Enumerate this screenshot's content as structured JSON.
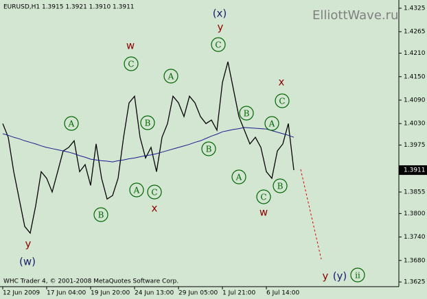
{
  "chart_data": {
    "type": "line",
    "title": "EURUSD,H1  1.3915 1.3921 1.3910 1.3911",
    "watermark": "ElliottWave.ru",
    "footer": "WHC Trader 4, © 2001-2008 MetaQuotes Software Corp.",
    "categories": [
      "12 Jun 2009",
      null,
      null,
      null,
      null,
      null,
      null,
      null,
      "17 Jun 04:00",
      null,
      null,
      null,
      null,
      null,
      null,
      null,
      "19 Jun 20:00",
      null,
      null,
      null,
      null,
      null,
      null,
      null,
      "24 Jun 13:00",
      null,
      null,
      null,
      null,
      null,
      null,
      null,
      "29 Jun 05:00",
      null,
      null,
      null,
      null,
      null,
      null,
      null,
      "1 Jul 21:00",
      null,
      null,
      null,
      null,
      null,
      null,
      null,
      "6 Jul 14:00",
      null,
      null,
      null,
      null,
      null
    ],
    "series": [
      {
        "name": "EURUSD",
        "color": "#000000",
        "values": [
          1.403,
          1.3995,
          1.3907,
          1.3837,
          1.3767,
          1.375,
          1.382,
          1.3907,
          1.389,
          1.3855,
          1.3907,
          1.396,
          1.3969,
          1.3986,
          1.3907,
          1.3925,
          1.3872,
          1.3978,
          1.389,
          1.3837,
          1.3846,
          1.389,
          1.3995,
          1.4083,
          1.41,
          1.3995,
          1.3942,
          1.3969,
          1.3907,
          1.3995,
          1.403,
          1.41,
          1.4083,
          1.4048,
          1.41,
          1.4083,
          1.4048,
          1.403,
          1.4039,
          1.4013,
          1.4135,
          1.4188,
          1.4118,
          1.4048,
          1.4013,
          1.3978,
          1.3995,
          1.3969,
          1.3907,
          1.389,
          1.396,
          1.3978,
          1.403,
          1.3911
        ]
      },
      {
        "name": "MA",
        "color": "#1a1a8c",
        "values": [
          1.4004,
          1.4,
          1.3995,
          1.3991,
          1.3986,
          1.3982,
          1.3978,
          1.3973,
          1.3969,
          1.3966,
          1.3963,
          1.396,
          1.3957,
          1.3953,
          1.3948,
          1.3944,
          1.3939,
          1.3937,
          1.3935,
          1.3934,
          1.3932,
          1.3935,
          1.3937,
          1.394,
          1.3942,
          1.3945,
          1.3948,
          1.395,
          1.3953,
          1.3957,
          1.3961,
          1.3965,
          1.3969,
          1.3973,
          1.3977,
          1.3982,
          1.3986,
          1.3992,
          1.3998,
          1.4003,
          1.4009,
          1.4012,
          1.4015,
          1.4017,
          1.402,
          1.4019,
          1.4018,
          1.4017,
          1.4016,
          1.4012,
          1.4008,
          1.4004,
          1.4,
          1.3995
        ]
      }
    ],
    "ylim": [
      1.3613,
      1.4346
    ],
    "yticks": [
      1.4325,
      1.4265,
      {
        "value": 1.421,
        "label": "1.4210"
      },
      {
        "value": 1.415,
        "label": "1.4150"
      },
      {
        "value": 1.409,
        "label": "1.4090"
      },
      {
        "value": 1.403,
        "label": "1.4030"
      },
      1.3975,
      1.3855,
      {
        "value": 1.38,
        "label": "1.3800"
      },
      {
        "value": 1.374,
        "label": "1.3740"
      },
      {
        "value": 1.368,
        "label": "1.3680"
      },
      1.3625
    ],
    "current_price": 1.3911,
    "circled_labels": [
      "A",
      "B",
      "C",
      "B",
      "A",
      "C",
      "A",
      "B",
      "C",
      "B",
      "A",
      "B",
      "C",
      "A",
      "C",
      "ii"
    ],
    "wave_labels": [
      "w",
      "x",
      "y",
      "x",
      "w",
      "y",
      "y"
    ],
    "degree_labels": [
      "(x)",
      "(w)",
      "(y)"
    ]
  }
}
